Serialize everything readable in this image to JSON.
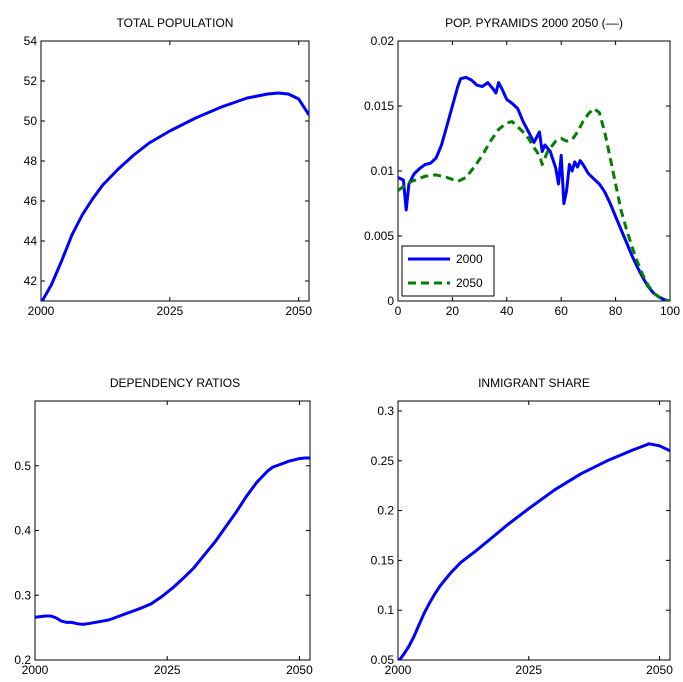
{
  "chart_data": [
    {
      "type": "line",
      "title": "TOTAL POPULATION",
      "xlim": [
        2000,
        2052
      ],
      "ylim": [
        41,
        54
      ],
      "xticks": [
        {
          "v": 2000,
          "label": "2000"
        },
        {
          "v": 2025,
          "label": "2025"
        },
        {
          "v": 2050,
          "label": "2050"
        }
      ],
      "yticks": [
        {
          "v": 42,
          "label": "42"
        },
        {
          "v": 44,
          "label": "44"
        },
        {
          "v": 46,
          "label": "46"
        },
        {
          "v": 48,
          "label": "48"
        },
        {
          "v": 50,
          "label": "50"
        },
        {
          "v": 52,
          "label": "52"
        },
        {
          "v": 54,
          "label": "54"
        }
      ],
      "grid": false,
      "series": [
        {
          "color": "#0000ff",
          "dash": "solid",
          "x": [
            2000,
            2002,
            2004,
            2006,
            2008,
            2010,
            2012,
            2015,
            2018,
            2021,
            2025,
            2030,
            2035,
            2040,
            2044,
            2046,
            2048,
            2050,
            2052
          ],
          "values": [
            40.9,
            41.8,
            43.0,
            44.3,
            45.3,
            46.1,
            46.8,
            47.6,
            48.3,
            48.9,
            49.5,
            50.15,
            50.7,
            51.15,
            51.35,
            51.4,
            51.35,
            51.1,
            50.3
          ]
        }
      ]
    },
    {
      "type": "line",
      "title": "POP. PYRAMIDS 2000 2050 (––)",
      "xlim": [
        0,
        100
      ],
      "ylim": [
        0,
        0.02
      ],
      "xticks": [
        {
          "v": 0,
          "label": "0"
        },
        {
          "v": 20,
          "label": "20"
        },
        {
          "v": 40,
          "label": "40"
        },
        {
          "v": 60,
          "label": "60"
        },
        {
          "v": 80,
          "label": "80"
        },
        {
          "v": 100,
          "label": "100"
        }
      ],
      "yticks": [
        {
          "v": 0,
          "label": "0"
        },
        {
          "v": 0.005,
          "label": "0.005"
        },
        {
          "v": 0.01,
          "label": "0.01"
        },
        {
          "v": 0.015,
          "label": "0.015"
        },
        {
          "v": 0.02,
          "label": "0.02"
        }
      ],
      "grid": false,
      "legend": {
        "placement": "lower-left",
        "entries": [
          {
            "label": "2000",
            "series": 0
          },
          {
            "label": "2050",
            "series": 1
          }
        ]
      },
      "series": [
        {
          "name": "2000",
          "color": "#0000ff",
          "dash": "solid",
          "x": [
            0,
            2,
            3,
            4,
            6,
            8,
            10,
            12,
            14,
            16,
            18,
            20,
            22,
            23,
            25,
            27,
            29,
            31,
            33,
            35,
            36,
            37,
            38,
            40,
            42,
            44,
            46,
            48,
            50,
            52,
            53,
            54,
            56,
            58,
            59,
            60,
            61,
            62,
            63,
            64,
            65,
            66,
            67,
            68,
            70,
            72,
            74,
            76,
            78,
            80,
            82,
            84,
            86,
            88,
            90,
            92,
            94,
            96,
            98,
            100
          ],
          "values": [
            0.0095,
            0.0093,
            0.007,
            0.009,
            0.0098,
            0.0102,
            0.0105,
            0.0106,
            0.011,
            0.012,
            0.0135,
            0.015,
            0.0165,
            0.0171,
            0.0172,
            0.017,
            0.0166,
            0.0165,
            0.0168,
            0.0163,
            0.016,
            0.0168,
            0.0164,
            0.0155,
            0.0152,
            0.0148,
            0.0138,
            0.013,
            0.0122,
            0.013,
            0.0115,
            0.012,
            0.0115,
            0.0102,
            0.009,
            0.0112,
            0.0075,
            0.0085,
            0.0105,
            0.01,
            0.0107,
            0.0103,
            0.0108,
            0.0105,
            0.0098,
            0.0094,
            0.009,
            0.0084,
            0.0075,
            0.0065,
            0.0055,
            0.0045,
            0.0035,
            0.0026,
            0.0018,
            0.0011,
            0.0006,
            0.0003,
            0.0001,
            0.0
          ]
        },
        {
          "name": "2050",
          "color": "#008000",
          "dash": "dashed",
          "x": [
            0,
            2,
            5,
            10,
            14,
            18,
            22,
            25,
            28,
            31,
            34,
            37,
            40,
            42,
            44,
            46,
            48,
            50,
            52,
            53,
            55,
            58,
            60,
            62,
            64,
            66,
            68,
            70,
            72,
            74,
            76,
            78,
            80,
            82,
            84,
            86,
            88,
            90,
            92,
            94,
            96,
            98,
            100
          ],
          "values": [
            0.0085,
            0.0088,
            0.0092,
            0.0096,
            0.0097,
            0.0095,
            0.0092,
            0.0095,
            0.0103,
            0.0112,
            0.0123,
            0.0132,
            0.0137,
            0.0138,
            0.0134,
            0.013,
            0.0125,
            0.0118,
            0.0112,
            0.0105,
            0.0115,
            0.0123,
            0.0125,
            0.0123,
            0.0124,
            0.013,
            0.0138,
            0.0144,
            0.0148,
            0.0145,
            0.013,
            0.011,
            0.009,
            0.007,
            0.0055,
            0.0042,
            0.003,
            0.002,
            0.0012,
            0.0006,
            0.0003,
            0.0001,
            0.0
          ]
        }
      ]
    },
    {
      "type": "line",
      "title": "DEPENDENCY RATIOS",
      "xlim": [
        2000,
        2052
      ],
      "ylim": [
        0.2,
        0.6
      ],
      "xticks": [
        {
          "v": 2000,
          "label": "2000"
        },
        {
          "v": 2025,
          "label": "2025"
        },
        {
          "v": 2050,
          "label": "2050"
        }
      ],
      "yticks": [
        {
          "v": 0.2,
          "label": "0.2"
        },
        {
          "v": 0.3,
          "label": "0.3"
        },
        {
          "v": 0.4,
          "label": "0.4"
        },
        {
          "v": 0.5,
          "label": "0.5"
        }
      ],
      "grid": false,
      "series": [
        {
          "color": "#0000ff",
          "dash": "solid",
          "x": [
            2000,
            2002,
            2003,
            2004,
            2005,
            2006,
            2007,
            2008,
            2009,
            2010,
            2012,
            2014,
            2016,
            2018,
            2020,
            2022,
            2024,
            2026,
            2028,
            2030,
            2032,
            2034,
            2036,
            2038,
            2040,
            2042,
            2044,
            2045,
            2046,
            2047,
            2048,
            2049,
            2050,
            2051,
            2052
          ],
          "values": [
            0.266,
            0.268,
            0.268,
            0.265,
            0.26,
            0.258,
            0.258,
            0.256,
            0.255,
            0.256,
            0.259,
            0.262,
            0.268,
            0.274,
            0.28,
            0.287,
            0.298,
            0.311,
            0.326,
            0.342,
            0.362,
            0.382,
            0.405,
            0.428,
            0.453,
            0.475,
            0.492,
            0.498,
            0.501,
            0.504,
            0.507,
            0.509,
            0.511,
            0.512,
            0.512
          ]
        }
      ]
    },
    {
      "type": "line",
      "title": "INMIGRANT SHARE",
      "xlim": [
        2000,
        2052
      ],
      "ylim": [
        0.05,
        0.31
      ],
      "xticks": [
        {
          "v": 2000,
          "label": "2000"
        },
        {
          "v": 2025,
          "label": "2025"
        },
        {
          "v": 2050,
          "label": "2050"
        }
      ],
      "yticks": [
        {
          "v": 0.05,
          "label": "0.05"
        },
        {
          "v": 0.1,
          "label": "0.1"
        },
        {
          "v": 0.15,
          "label": "0.15"
        },
        {
          "v": 0.2,
          "label": "0.2"
        },
        {
          "v": 0.25,
          "label": "0.25"
        },
        {
          "v": 0.3,
          "label": "0.3"
        }
      ],
      "grid": false,
      "series": [
        {
          "color": "#0000ff",
          "dash": "solid",
          "x": [
            2000,
            2001,
            2002,
            2003,
            2004,
            2005,
            2006,
            2007,
            2008,
            2010,
            2012,
            2015,
            2018,
            2021,
            2025,
            2030,
            2035,
            2040,
            2045,
            2048,
            2050,
            2052
          ],
          "values": [
            0.048,
            0.055,
            0.063,
            0.073,
            0.085,
            0.097,
            0.107,
            0.116,
            0.124,
            0.137,
            0.148,
            0.16,
            0.173,
            0.186,
            0.202,
            0.221,
            0.237,
            0.25,
            0.261,
            0.267,
            0.265,
            0.26
          ]
        }
      ]
    }
  ]
}
